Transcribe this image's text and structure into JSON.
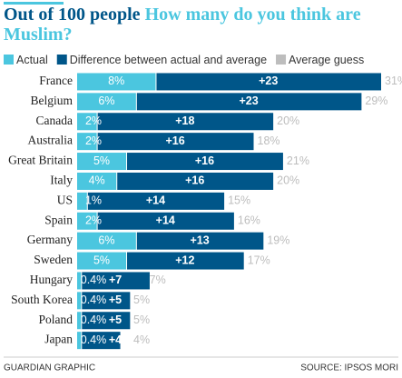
{
  "chart_data": {
    "type": "bar",
    "orientation": "horizontal",
    "stacked": true,
    "title": "Out of 100 people",
    "subtitle": "How many do you think are Muslim?",
    "credit": "GUARDIAN GRAPHIC",
    "source": "SOURCE: IPSOS MORI",
    "categories": [
      "France",
      "Belgium",
      "Canada",
      "Australia",
      "Great Britain",
      "Italy",
      "US",
      "Spain",
      "Germany",
      "Sweden",
      "Hungary",
      "South Korea",
      "Poland",
      "Japan"
    ],
    "series": [
      {
        "name": "Actual",
        "color": "#4bc6df",
        "values": [
          8,
          6,
          2,
          2,
          5,
          4,
          1,
          2,
          6,
          5,
          0.4,
          0.4,
          0.4,
          0.4
        ],
        "value_labels": [
          "8%",
          "6%",
          "2%",
          "2%",
          "5%",
          "4%",
          "1%",
          "2%",
          "6%",
          "5%",
          "0.4%",
          "0.4%",
          "0.4%",
          "0.4%"
        ]
      },
      {
        "name": "Difference between actual and average",
        "color": "#005689",
        "values": [
          23,
          23,
          18,
          16,
          16,
          16,
          14,
          14,
          13,
          12,
          7,
          5,
          5,
          4
        ],
        "value_labels": [
          "+23",
          "+23",
          "+18",
          "+16",
          "+16",
          "+16",
          "+14",
          "+14",
          "+13",
          "+12",
          "+7",
          "+5",
          "+5",
          "+4"
        ]
      },
      {
        "name": "Average guess",
        "color": "#bdbdbd",
        "values": [
          31,
          29,
          20,
          18,
          21,
          20,
          15,
          16,
          19,
          17,
          7,
          5,
          5,
          4
        ],
        "value_labels": [
          "31%",
          "29%",
          "20%",
          "18%",
          "21%",
          "20%",
          "15%",
          "16%",
          "19%",
          "17%",
          "7%",
          "5%",
          "5%",
          "4%"
        ]
      }
    ]
  }
}
